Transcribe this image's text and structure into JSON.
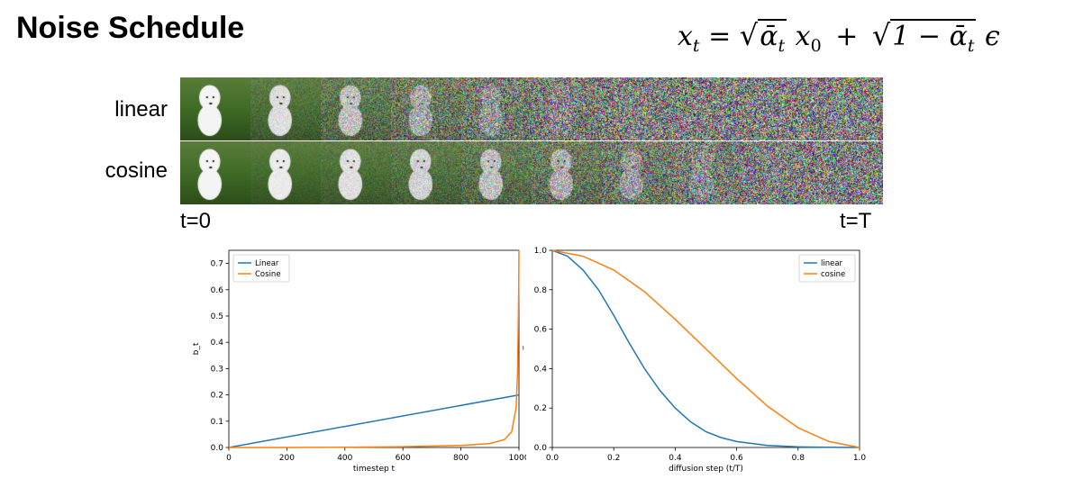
{
  "header": {
    "title": "Noise Schedule",
    "formula": {
      "lhs": "x",
      "lhs_sub": "t",
      "eq": "=",
      "term1_root": "ᾱ",
      "term1_root_sub": "t",
      "term1_var": "x",
      "term1_var_sub": "0",
      "plus": "+",
      "term2_root": "1 − ᾱ",
      "term2_root_sub": "t",
      "term2_var": "ϵ"
    }
  },
  "rows": [
    {
      "label": "linear",
      "noise_levels": [
        0.0,
        0.2,
        0.45,
        0.65,
        0.8,
        0.9,
        0.96,
        0.99,
        1.0,
        1.0
      ]
    },
    {
      "label": "cosine",
      "noise_levels": [
        0.0,
        0.08,
        0.18,
        0.3,
        0.45,
        0.6,
        0.75,
        0.88,
        0.96,
        1.0
      ]
    }
  ],
  "timeline": {
    "start": "t=0",
    "end": "t=T"
  },
  "colors": {
    "linear": "#1f77b4",
    "cosine": "#ff7f0e",
    "grass": "#3f6b26",
    "dog": "#f4f4f4"
  },
  "chart_data": [
    {
      "type": "line",
      "title": "",
      "xlabel": "timestep t",
      "ylabel": "b_t",
      "xlim": [
        0,
        1000
      ],
      "ylim": [
        0,
        0.75
      ],
      "xticks": [
        0,
        200,
        400,
        600,
        800,
        1000
      ],
      "yticks": [
        0.0,
        0.1,
        0.2,
        0.3,
        0.4,
        0.5,
        0.6,
        0.7
      ],
      "xtick_labels": [
        "0",
        "200",
        "400",
        "600",
        "800",
        "1000"
      ],
      "ytick_labels": [
        "0.0",
        "0.1",
        "0.2",
        "0.3",
        "0.4",
        "0.5",
        "0.6",
        "0.7"
      ],
      "legend": "top-left",
      "grid": false,
      "series": [
        {
          "name": "Linear",
          "x": [
            0,
            1000
          ],
          "y": [
            0.0,
            0.2
          ]
        },
        {
          "name": "Cosine",
          "x": [
            0,
            200,
            400,
            600,
            800,
            900,
            950,
            975,
            990,
            995,
            999,
            1000
          ],
          "y": [
            0.0,
            0.0,
            0.001,
            0.003,
            0.008,
            0.015,
            0.03,
            0.06,
            0.15,
            0.28,
            0.6,
            0.75
          ]
        }
      ]
    },
    {
      "type": "line",
      "title": "",
      "xlabel": "diffusion step (t/T)",
      "ylabel": "ᾱ_t",
      "xlim": [
        0,
        1
      ],
      "ylim": [
        0,
        1
      ],
      "xticks": [
        0,
        0.2,
        0.4,
        0.6,
        0.8,
        1.0
      ],
      "yticks": [
        0.0,
        0.2,
        0.4,
        0.6,
        0.8,
        1.0
      ],
      "xtick_labels": [
        "0.0",
        "0.2",
        "0.4",
        "0.6",
        "0.8",
        "1.0"
      ],
      "ytick_labels": [
        "0.0",
        "0.2",
        "0.4",
        "0.6",
        "0.8",
        "1.0"
      ],
      "legend": "top-right",
      "grid": false,
      "series": [
        {
          "name": "linear",
          "x": [
            0,
            0.05,
            0.1,
            0.15,
            0.2,
            0.25,
            0.3,
            0.35,
            0.4,
            0.45,
            0.5,
            0.55,
            0.6,
            0.7,
            0.8,
            0.9,
            1.0
          ],
          "y": [
            1.0,
            0.97,
            0.9,
            0.8,
            0.67,
            0.53,
            0.4,
            0.29,
            0.2,
            0.13,
            0.08,
            0.05,
            0.03,
            0.01,
            0.003,
            0.001,
            0.0
          ]
        },
        {
          "name": "cosine",
          "x": [
            0,
            0.1,
            0.2,
            0.3,
            0.4,
            0.5,
            0.6,
            0.7,
            0.8,
            0.9,
            1.0
          ],
          "y": [
            1.0,
            0.97,
            0.9,
            0.79,
            0.65,
            0.5,
            0.35,
            0.21,
            0.1,
            0.03,
            0.0
          ]
        }
      ]
    }
  ]
}
